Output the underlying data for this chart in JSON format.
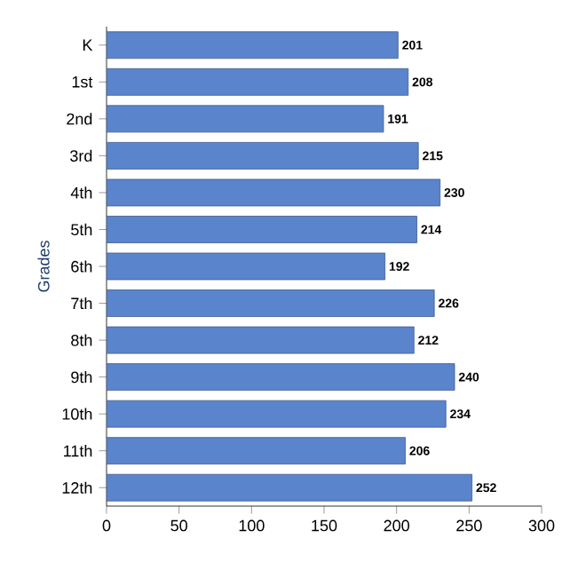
{
  "chart_data": {
    "type": "bar",
    "orientation": "horizontal",
    "ylabel": "Grades",
    "categories": [
      "K",
      "1st",
      "2nd",
      "3rd",
      "4th",
      "5th",
      "6th",
      "7th",
      "8th",
      "9th",
      "10th",
      "11th",
      "12th"
    ],
    "values": [
      201,
      208,
      191,
      215,
      230,
      214,
      192,
      226,
      212,
      240,
      234,
      206,
      252
    ],
    "color": "#5a84cc",
    "xlim": [
      0,
      300
    ],
    "xticks": [
      0,
      50,
      100,
      150,
      200,
      250,
      300
    ],
    "data_labels": true,
    "grid": false
  }
}
